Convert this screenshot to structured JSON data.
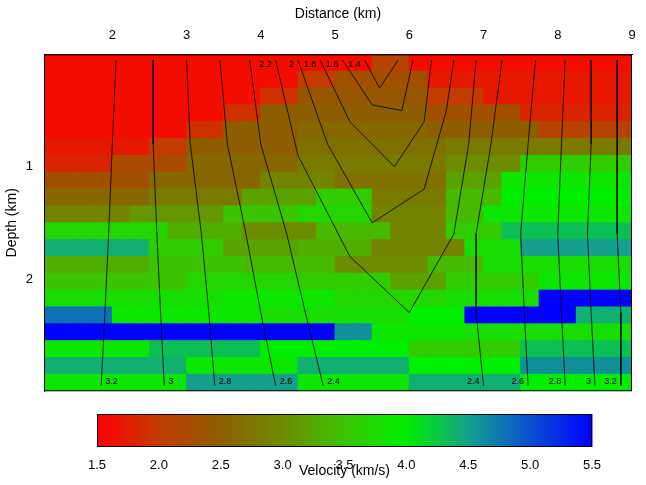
{
  "chart_data": {
    "type": "heatmap",
    "x_label": "Distance (km)",
    "y_label": "Depth (km)",
    "xlim": [
      1.08,
      9
    ],
    "xticks": [
      2,
      3,
      4,
      5,
      6,
      7,
      8,
      9
    ],
    "ylim": [
      0,
      3
    ],
    "yticks": [
      1,
      2
    ],
    "grid": false,
    "cells": {
      "x_edges": [
        1.0,
        1.25,
        1.5,
        1.75,
        2.0,
        2.25,
        2.5,
        2.75,
        3.0,
        3.25,
        3.5,
        3.75,
        4.0,
        4.25,
        4.5,
        4.75,
        5.0,
        5.25,
        5.5,
        5.75,
        6.0,
        6.25,
        6.5,
        6.75,
        7.0,
        7.25,
        7.5,
        7.75,
        8.0,
        8.25,
        8.5,
        8.75,
        9.0
      ],
      "y_edges": [
        0,
        0.15,
        0.3,
        0.45,
        0.6,
        0.75,
        0.9,
        1.05,
        1.2,
        1.35,
        1.5,
        1.65,
        1.8,
        1.95,
        2.1,
        2.25,
        2.4,
        2.55,
        2.7,
        2.85,
        3.0
      ],
      "values": [
        [
          1.6,
          1.6,
          1.6,
          1.6,
          1.6,
          1.6,
          1.6,
          1.6,
          1.6,
          1.6,
          1.6,
          1.6,
          1.6,
          1.6,
          1.6,
          1.6,
          1.6,
          1.6,
          2.1,
          2.1,
          1.6,
          1.6,
          1.6,
          1.6,
          1.6,
          1.6,
          1.6,
          1.6,
          1.6,
          1.6,
          1.6,
          1.6
        ],
        [
          1.6,
          1.6,
          1.6,
          1.6,
          1.6,
          1.6,
          1.6,
          1.6,
          1.6,
          1.6,
          1.6,
          1.6,
          1.6,
          1.6,
          2.0,
          2.0,
          2.3,
          2.3,
          2.3,
          2.3,
          2.3,
          1.7,
          1.7,
          1.7,
          1.7,
          1.7,
          1.7,
          1.7,
          1.7,
          1.7,
          1.7,
          1.7
        ],
        [
          1.6,
          1.6,
          1.6,
          1.6,
          1.6,
          1.6,
          1.6,
          1.6,
          1.6,
          1.6,
          1.6,
          1.6,
          1.9,
          1.9,
          2.4,
          2.4,
          2.4,
          2.4,
          2.4,
          2.4,
          2.4,
          2.0,
          2.0,
          2.0,
          1.7,
          1.7,
          1.7,
          1.7,
          1.7,
          1.7,
          1.7,
          1.7
        ],
        [
          1.6,
          1.6,
          1.6,
          1.6,
          1.6,
          1.6,
          1.6,
          1.6,
          1.6,
          1.6,
          1.9,
          1.9,
          2.5,
          2.5,
          2.5,
          2.5,
          2.5,
          2.5,
          2.5,
          2.5,
          2.5,
          2.3,
          2.3,
          2.3,
          2.3,
          2.3,
          1.8,
          1.8,
          1.8,
          1.8,
          1.8,
          1.8
        ],
        [
          1.6,
          1.6,
          1.6,
          1.6,
          1.6,
          1.6,
          1.6,
          1.6,
          1.9,
          1.9,
          2.5,
          2.5,
          2.5,
          2.5,
          2.6,
          2.6,
          2.6,
          2.6,
          2.6,
          2.6,
          2.6,
          2.5,
          2.5,
          2.5,
          2.5,
          2.5,
          2.5,
          2.1,
          2.1,
          2.1,
          2.1,
          2.1
        ],
        [
          1.7,
          1.7,
          1.7,
          1.7,
          1.7,
          1.7,
          2.0,
          2.0,
          2.5,
          2.5,
          2.5,
          2.5,
          2.5,
          2.5,
          2.7,
          2.7,
          2.7,
          2.7,
          2.7,
          2.7,
          2.7,
          2.7,
          2.8,
          2.8,
          2.8,
          2.8,
          2.8,
          2.8,
          2.8,
          2.8,
          2.8,
          2.8
        ],
        [
          1.8,
          1.8,
          1.8,
          1.8,
          2.2,
          2.2,
          2.2,
          2.2,
          2.6,
          2.6,
          2.6,
          2.6,
          2.6,
          2.6,
          2.8,
          2.8,
          2.8,
          2.8,
          2.8,
          2.8,
          2.8,
          2.8,
          3.0,
          3.0,
          3.0,
          3.0,
          3.6,
          3.6,
          3.6,
          3.6,
          3.6,
          3.6
        ],
        [
          2.3,
          2.3,
          2.3,
          2.3,
          2.3,
          2.3,
          2.6,
          2.6,
          2.6,
          2.6,
          2.6,
          2.6,
          2.9,
          2.9,
          2.9,
          2.9,
          2.7,
          2.7,
          2.7,
          2.7,
          2.7,
          2.7,
          3.2,
          3.2,
          3.2,
          3.9,
          3.9,
          3.9,
          3.9,
          3.9,
          3.9,
          3.9
        ],
        [
          2.6,
          2.6,
          2.6,
          2.6,
          2.6,
          2.6,
          2.8,
          2.8,
          2.8,
          2.8,
          2.8,
          3.2,
          3.2,
          3.2,
          3.2,
          3.6,
          3.6,
          3.6,
          2.8,
          2.8,
          2.8,
          2.8,
          3.4,
          3.4,
          3.4,
          4.0,
          4.0,
          4.0,
          4.0,
          4.0,
          4.0,
          4.0
        ],
        [
          2.9,
          2.9,
          2.9,
          2.9,
          2.9,
          3.1,
          3.1,
          3.1,
          3.1,
          3.1,
          3.5,
          3.5,
          3.5,
          3.5,
          3.7,
          3.7,
          3.7,
          3.7,
          2.9,
          2.9,
          2.9,
          2.9,
          3.4,
          3.4,
          3.9,
          3.9,
          3.9,
          3.9,
          3.9,
          3.9,
          3.9,
          3.9
        ],
        [
          3.7,
          3.7,
          3.7,
          3.7,
          3.7,
          3.7,
          3.7,
          3.3,
          3.3,
          3.3,
          3.3,
          3.0,
          3.0,
          3.0,
          3.0,
          3.4,
          3.4,
          3.4,
          3.4,
          2.9,
          2.9,
          2.9,
          3.6,
          3.6,
          3.6,
          4.3,
          4.3,
          4.3,
          4.3,
          4.3,
          4.3,
          4.3
        ],
        [
          4.4,
          4.4,
          4.4,
          4.4,
          4.4,
          4.4,
          3.6,
          3.6,
          3.6,
          3.6,
          3.2,
          3.2,
          3.2,
          3.2,
          3.3,
          3.3,
          3.3,
          3.3,
          2.9,
          2.9,
          2.9,
          2.9,
          2.9,
          3.8,
          3.8,
          3.8,
          4.5,
          4.5,
          4.5,
          4.5,
          4.5,
          4.5
        ],
        [
          3.3,
          3.3,
          3.3,
          3.3,
          3.3,
          3.3,
          3.5,
          3.5,
          3.5,
          3.5,
          3.5,
          3.4,
          3.4,
          3.4,
          3.4,
          3.4,
          3.0,
          3.0,
          3.0,
          3.0,
          3.0,
          3.4,
          3.4,
          3.4,
          3.8,
          3.8,
          3.8,
          3.8,
          3.8,
          3.8,
          3.8,
          3.8
        ],
        [
          3.5,
          3.5,
          3.5,
          3.5,
          3.5,
          3.5,
          3.5,
          3.5,
          3.7,
          3.7,
          3.7,
          3.7,
          3.7,
          3.7,
          3.6,
          3.6,
          3.6,
          3.6,
          3.6,
          3.2,
          3.2,
          3.2,
          3.6,
          3.6,
          3.6,
          3.6,
          3.6,
          3.9,
          3.9,
          3.9,
          3.9,
          3.9
        ],
        [
          3.8,
          3.8,
          3.8,
          3.8,
          3.8,
          3.8,
          3.8,
          3.8,
          3.8,
          3.8,
          3.9,
          3.9,
          3.9,
          3.9,
          3.9,
          3.9,
          3.7,
          3.7,
          3.7,
          3.7,
          3.7,
          3.7,
          3.8,
          3.8,
          3.8,
          3.8,
          3.8,
          5.5,
          5.5,
          5.5,
          5.5,
          5.5
        ],
        [
          4.8,
          4.8,
          4.8,
          4.8,
          3.9,
          3.9,
          3.9,
          3.9,
          3.9,
          3.9,
          3.9,
          3.9,
          3.8,
          3.8,
          3.8,
          3.8,
          3.8,
          3.8,
          3.8,
          3.8,
          4.0,
          4.0,
          4.0,
          5.5,
          5.5,
          5.5,
          5.5,
          5.5,
          5.5,
          4.4,
          4.4,
          4.4
        ],
        [
          5.5,
          5.5,
          5.5,
          5.5,
          5.5,
          5.5,
          5.5,
          5.5,
          5.5,
          5.5,
          5.5,
          5.5,
          5.5,
          5.5,
          5.5,
          5.5,
          4.6,
          4.6,
          3.9,
          3.9,
          3.9,
          3.9,
          3.9,
          3.8,
          3.8,
          3.8,
          3.8,
          3.8,
          3.8,
          3.8,
          3.8,
          3.8
        ],
        [
          3.9,
          3.9,
          3.9,
          3.9,
          3.9,
          3.9,
          4.3,
          4.3,
          4.3,
          4.3,
          4.3,
          4.3,
          4.0,
          4.0,
          4.0,
          4.0,
          4.0,
          4.0,
          4.0,
          4.0,
          3.6,
          3.6,
          3.6,
          3.6,
          3.6,
          3.6,
          4.3,
          4.3,
          4.3,
          4.3,
          4.3,
          4.3
        ],
        [
          4.4,
          4.4,
          4.4,
          4.4,
          4.4,
          4.4,
          4.4,
          4.4,
          3.9,
          3.9,
          3.9,
          3.9,
          3.9,
          3.9,
          4.4,
          4.4,
          4.4,
          4.4,
          4.4,
          4.4,
          4.0,
          4.0,
          4.0,
          4.0,
          4.0,
          4.0,
          4.6,
          4.6,
          4.6,
          4.6,
          4.6,
          4.6
        ],
        [
          3.9,
          3.9,
          3.9,
          3.9,
          3.9,
          3.9,
          3.9,
          3.9,
          4.5,
          4.5,
          4.5,
          4.5,
          4.5,
          4.5,
          3.9,
          3.9,
          3.9,
          3.9,
          3.9,
          3.9,
          4.4,
          4.4,
          4.4,
          4.4,
          4.4,
          4.4,
          4.0,
          4.0,
          4.0,
          4.0,
          4.0,
          4.0
        ]
      ]
    },
    "contours": [
      {
        "level": 3.2,
        "points": [
          [
            2.05,
            0.05
          ],
          [
            2.0,
            0.8
          ],
          [
            1.95,
            1.6
          ],
          [
            1.9,
            2.3
          ],
          [
            1.85,
            2.95
          ]
        ]
      },
      {
        "level": 3,
        "points": [
          [
            2.55,
            0.05
          ],
          [
            2.55,
            0.8
          ],
          [
            2.6,
            1.6
          ],
          [
            2.65,
            2.3
          ],
          [
            2.7,
            2.95
          ]
        ]
      },
      {
        "level": 2.8,
        "points": [
          [
            3.0,
            0.05
          ],
          [
            3.05,
            0.8
          ],
          [
            3.2,
            1.6
          ],
          [
            3.3,
            2.3
          ],
          [
            3.38,
            2.95
          ]
        ]
      },
      {
        "level": 2.6,
        "points": [
          [
            3.45,
            0.05
          ],
          [
            3.55,
            0.8
          ],
          [
            3.8,
            1.6
          ],
          [
            4.0,
            2.3
          ],
          [
            4.2,
            2.95
          ]
        ]
      },
      {
        "level": 2.4,
        "points": [
          [
            3.85,
            0.05
          ],
          [
            4.0,
            0.8
          ],
          [
            4.35,
            1.6
          ],
          [
            4.6,
            2.3
          ],
          [
            4.84,
            2.95
          ]
        ]
      },
      {
        "level": 2.2,
        "points": [
          [
            6.9,
            0.05
          ],
          [
            6.8,
            0.8
          ],
          [
            6.6,
            1.6
          ],
          [
            6.0,
            2.3
          ],
          [
            5.2,
            1.8
          ],
          [
            4.5,
            0.9
          ],
          [
            4.2,
            0.05
          ]
        ]
      },
      {
        "level": 2,
        "points": [
          [
            6.6,
            0.05
          ],
          [
            6.5,
            0.5
          ],
          [
            6.2,
            1.2
          ],
          [
            5.5,
            1.5
          ],
          [
            4.9,
            0.8
          ],
          [
            4.5,
            0.05
          ]
        ]
      },
      {
        "level": 1.8,
        "points": [
          [
            6.3,
            0.05
          ],
          [
            6.2,
            0.6
          ],
          [
            5.8,
            1.0
          ],
          [
            5.2,
            0.6
          ],
          [
            4.8,
            0.05
          ]
        ]
      },
      {
        "level": 1.6,
        "points": [
          [
            6.05,
            0.05
          ],
          [
            5.9,
            0.5
          ],
          [
            5.5,
            0.45
          ],
          [
            5.1,
            0.05
          ]
        ]
      },
      {
        "level": 1.4,
        "points": [
          [
            5.85,
            0.05
          ],
          [
            5.6,
            0.3
          ],
          [
            5.4,
            0.05
          ]
        ]
      },
      {
        "level": 2.4,
        "points": [
          [
            7.25,
            0.05
          ],
          [
            7.1,
            0.8
          ],
          [
            6.9,
            1.6
          ],
          [
            6.9,
            2.3
          ],
          [
            7.0,
            2.95
          ]
        ]
      },
      {
        "level": 2.6,
        "points": [
          [
            7.7,
            0.05
          ],
          [
            7.6,
            0.8
          ],
          [
            7.5,
            1.6
          ],
          [
            7.55,
            2.3
          ],
          [
            7.6,
            2.95
          ]
        ]
      },
      {
        "level": 2.8,
        "points": [
          [
            8.1,
            0.05
          ],
          [
            8.05,
            0.8
          ],
          [
            8.0,
            1.6
          ],
          [
            8.05,
            2.3
          ],
          [
            8.1,
            2.95
          ]
        ]
      },
      {
        "level": 3,
        "points": [
          [
            8.45,
            0.05
          ],
          [
            8.45,
            0.8
          ],
          [
            8.4,
            1.6
          ],
          [
            8.45,
            2.3
          ],
          [
            8.5,
            2.95
          ]
        ]
      },
      {
        "level": 3.2,
        "points": [
          [
            8.8,
            0.05
          ],
          [
            8.8,
            0.8
          ],
          [
            8.8,
            1.6
          ],
          [
            8.85,
            2.3
          ],
          [
            8.85,
            2.95
          ]
        ]
      }
    ],
    "colorbar": {
      "label": "Velocity (km/s)",
      "range": [
        1.5,
        5.5
      ],
      "ticks": [
        1.5,
        {
          "value": 2,
          "label": "2.0"
        },
        2.5,
        {
          "value": 3,
          "label": "3.0"
        },
        3.5,
        {
          "value": 4,
          "label": "4.0"
        },
        4.5,
        {
          "value": 5,
          "label": "5.0"
        },
        5.5
      ]
    }
  }
}
